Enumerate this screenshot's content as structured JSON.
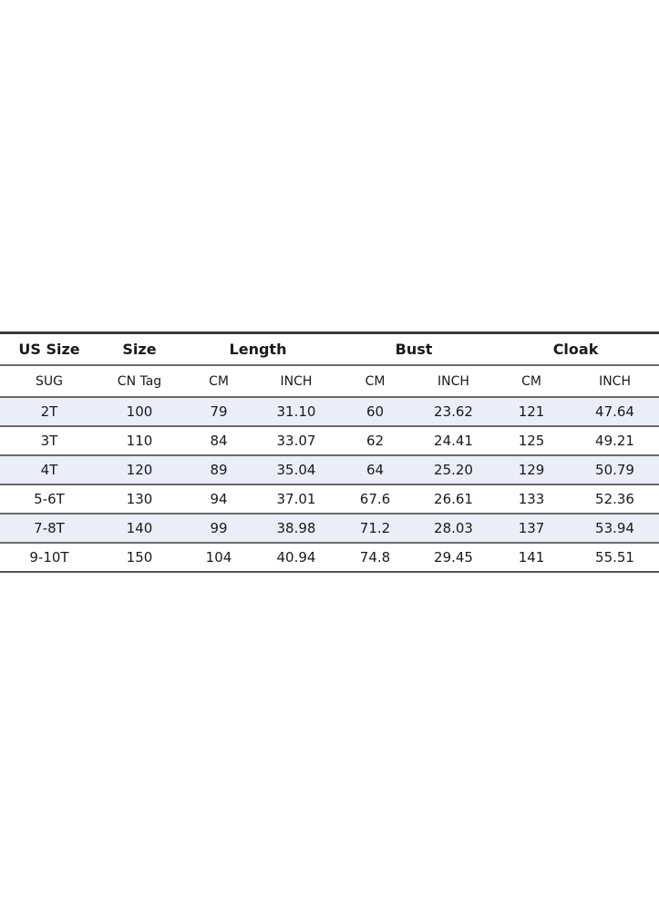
{
  "header": [
    "US Size",
    "Size",
    "Length",
    "Bust",
    "Cloak"
  ],
  "subheader": [
    "SUG",
    "CN Tag",
    "CM",
    "INCH",
    "CM",
    "INCH",
    "CM",
    "INCH"
  ],
  "rows": [
    [
      "2T",
      "100",
      "79",
      "31.10",
      "60",
      "23.62",
      "121",
      "47.64"
    ],
    [
      "3T",
      "110",
      "84",
      "33.07",
      "62",
      "24.41",
      "125",
      "49.21"
    ],
    [
      "4T",
      "120",
      "89",
      "35.04",
      "64",
      "25.20",
      "129",
      "50.79"
    ],
    [
      "5-6T",
      "130",
      "94",
      "37.01",
      "67.6",
      "26.61",
      "133",
      "52.36"
    ],
    [
      "7-8T",
      "140",
      "99",
      "38.98",
      "71.2",
      "28.03",
      "137",
      "53.94"
    ],
    [
      "9-10T",
      "150",
      "104",
      "40.94",
      "74.8",
      "29.45",
      "141",
      "55.51"
    ]
  ],
  "colors": {
    "row_highlight": "#e9eef9",
    "border": "#6a6a6a"
  }
}
